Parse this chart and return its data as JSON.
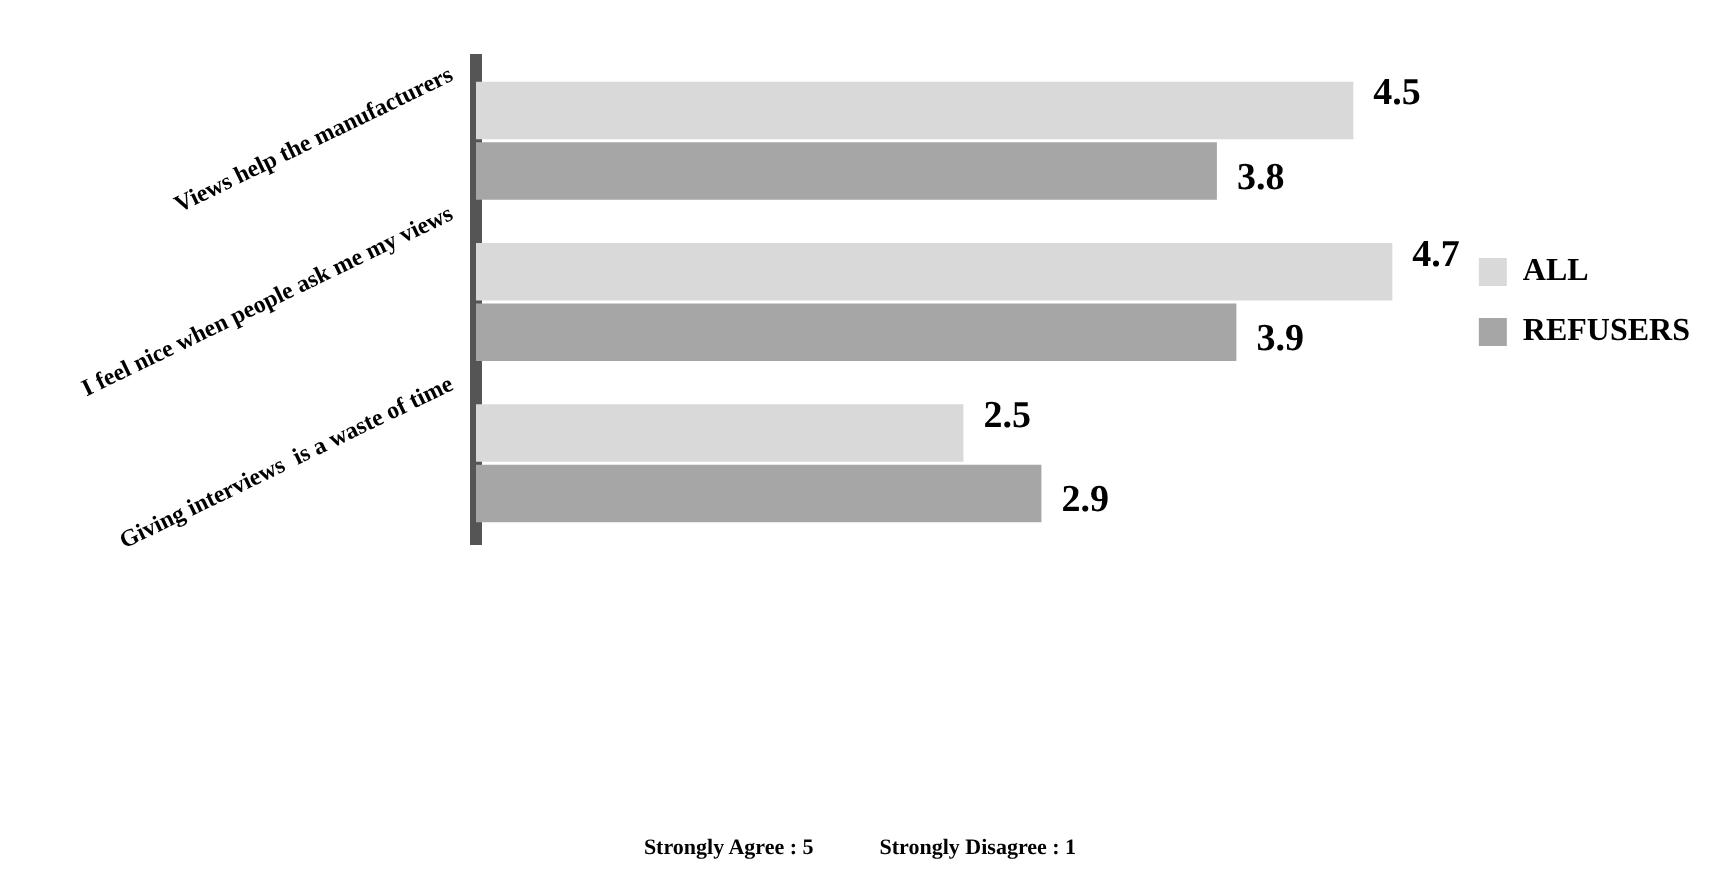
{
  "chart_data": {
    "type": "bar",
    "orientation": "horizontal",
    "categories": [
      "Views help the manufacturers",
      "I feel nice when people ask me my views",
      "Giving interviews  is a waste of time"
    ],
    "series": [
      {
        "name": "ALL",
        "color": "#d9d9d9",
        "values": [
          4.5,
          4.7,
          2.5
        ]
      },
      {
        "name": "REFUSERS",
        "color": "#a6a6a6",
        "values": [
          3.8,
          3.9,
          2.9
        ]
      }
    ],
    "tick_labels": "y",
    "data_labels": true,
    "legend": "right",
    "annotations": [
      "Strongly Agree : 5          Strongly Disagree : 1"
    ]
  }
}
